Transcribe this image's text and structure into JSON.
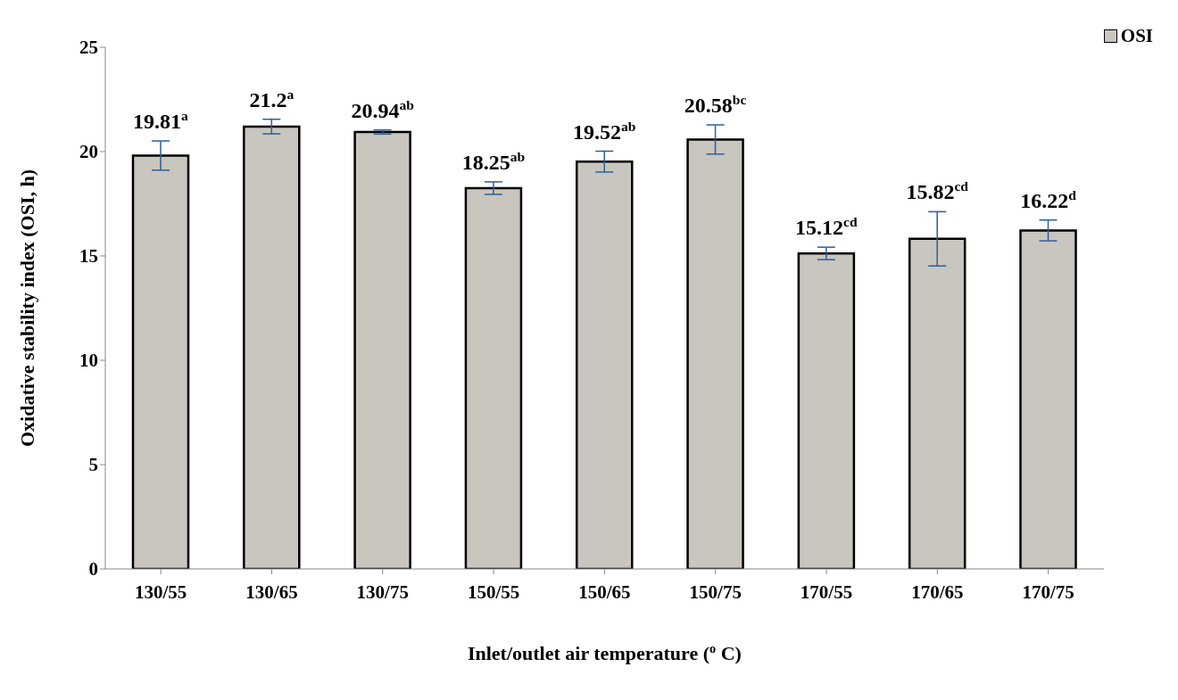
{
  "chart_data": {
    "type": "bar",
    "xlabel": "Inlet/outlet air temperature ($^{o}$ C)",
    "ylabel": "Oxidative stability index (OSI, h)",
    "categories": [
      "130/55",
      "130/65",
      "130/75",
      "150/55",
      "150/65",
      "150/75",
      "170/55",
      "170/65",
      "170/75"
    ],
    "series": [
      {
        "name": "OSI",
        "color": "#c8c6bf",
        "values": [
          19.81,
          21.2,
          20.94,
          18.25,
          19.52,
          20.58,
          15.12,
          15.82,
          16.22
        ],
        "errors": [
          0.7,
          0.35,
          0.1,
          0.3,
          0.5,
          0.7,
          0.3,
          1.3,
          0.5
        ],
        "value_labels": [
          "19.81$^{a}$",
          "21.2$^{a}$",
          "20.94$^{ab}$",
          "18.25$^{ab}$",
          "19.52$^{ab}$",
          "20.58$^{bc}$",
          "15.12$^{cd}$",
          "15.82$^{cd}$",
          "16.22$^{d}$"
        ]
      }
    ],
    "ylim": [
      0,
      25
    ],
    "yticks": [
      0,
      5,
      10,
      15,
      20,
      25
    ],
    "grid": false,
    "legend": "top right"
  }
}
